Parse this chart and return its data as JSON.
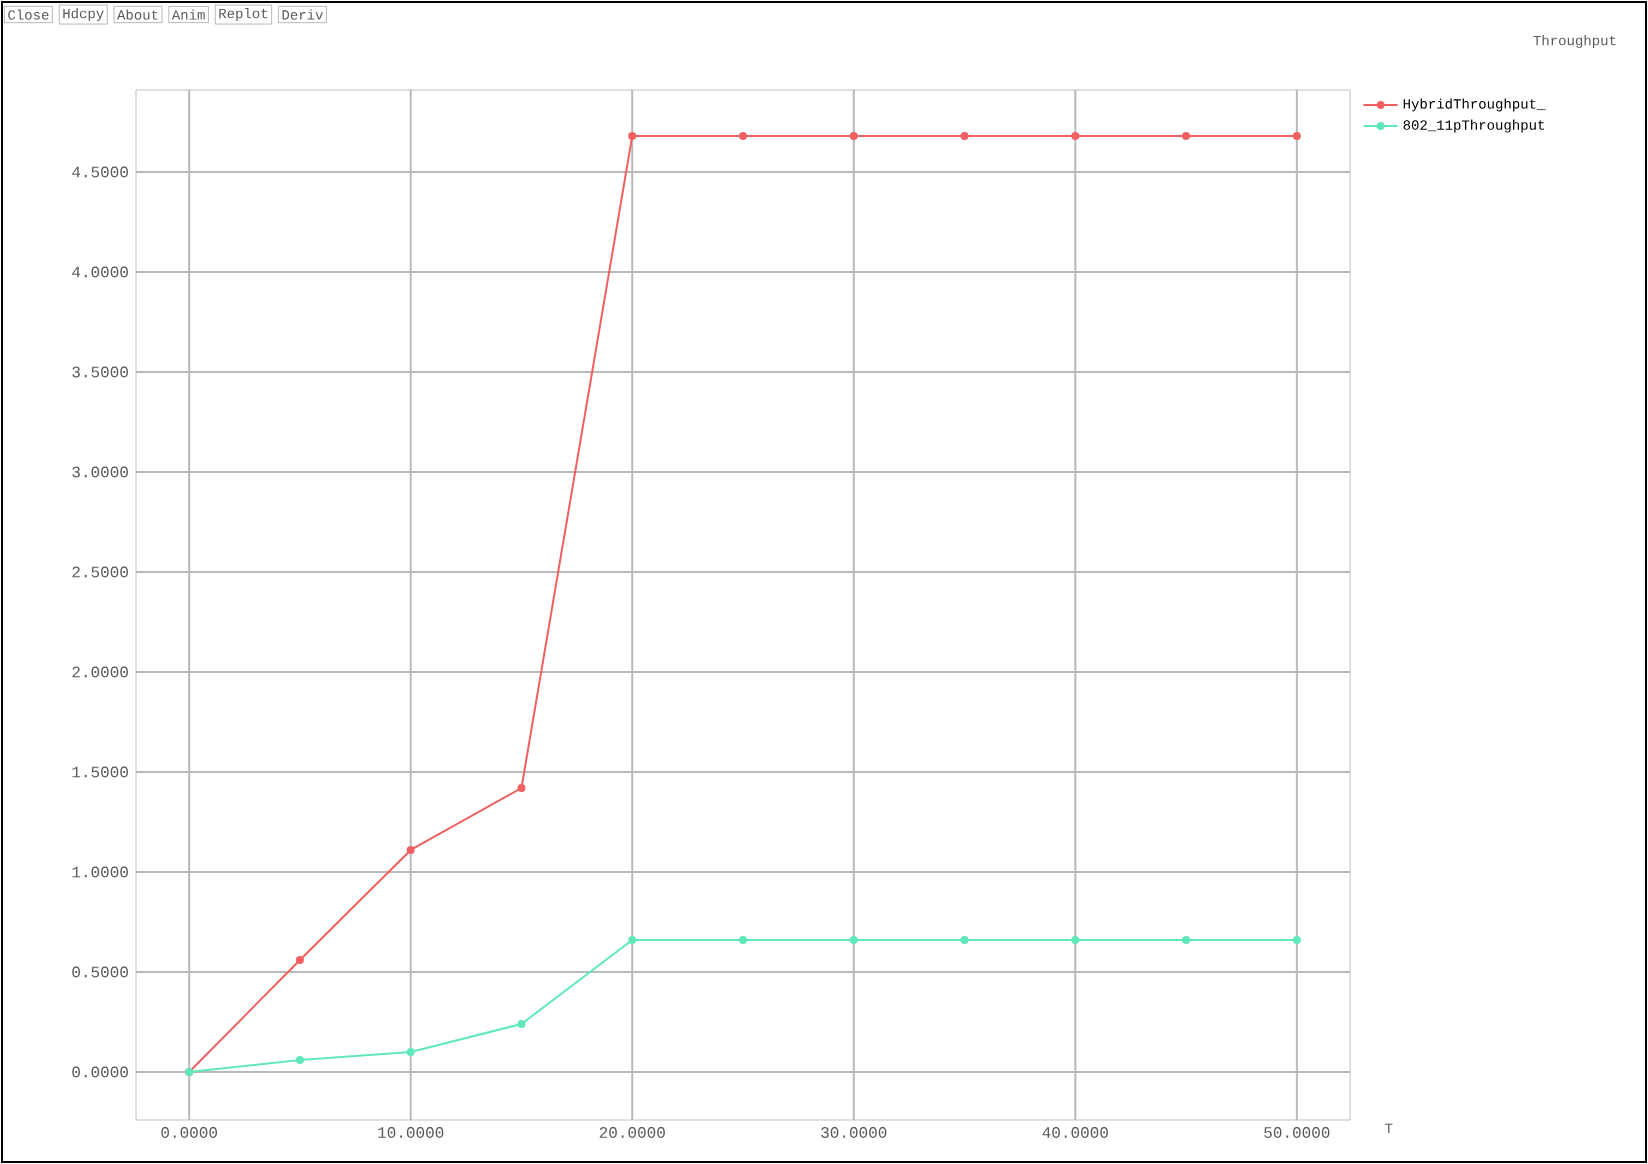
{
  "chart_data": {
    "type": "line",
    "title": "Throughput",
    "xlabel": "T",
    "annotations": [
      "Close",
      "Hdcpy",
      "About",
      "Anim",
      "Replot",
      "Deriv"
    ],
    "x": [
      0,
      5,
      10,
      15,
      20,
      25,
      30,
      35,
      40,
      45,
      50
    ],
    "series": [
      {
        "name": "HybridThroughput_",
        "color": "#f06060",
        "values": [
          0,
          0.56,
          1.11,
          1.42,
          4.68,
          4.68,
          4.68,
          4.68,
          4.68,
          4.68,
          4.68
        ]
      },
      {
        "name": "802_11pThroughput",
        "color": "#60e8b8",
        "values": [
          0,
          0.06,
          0.1,
          0.24,
          0.66,
          0.66,
          0.66,
          0.66,
          0.66,
          0.66,
          0.66
        ]
      }
    ],
    "xlim": [
      -2.4,
      52.4
    ],
    "ylim": [
      -0.24,
      4.91
    ],
    "xticks": [
      {
        "value": 0,
        "label": "0.0000"
      },
      {
        "value": 10,
        "label": "10.0000"
      },
      {
        "value": 20,
        "label": "20.0000"
      },
      {
        "value": 30,
        "label": "30.0000"
      },
      {
        "value": 40,
        "label": "40.0000"
      },
      {
        "value": 50,
        "label": "50.0000"
      }
    ],
    "yticks": [
      {
        "value": 0,
        "label": "0.0000"
      },
      {
        "value": 0.5,
        "label": "0.5000"
      },
      {
        "value": 1,
        "label": "1.0000"
      },
      {
        "value": 1.5,
        "label": "1.5000"
      },
      {
        "value": 2,
        "label": "2.0000"
      },
      {
        "value": 2.5,
        "label": "2.5000"
      },
      {
        "value": 3,
        "label": "3.0000"
      },
      {
        "value": 3.5,
        "label": "3.5000"
      },
      {
        "value": 4,
        "label": "4.0000"
      },
      {
        "value": 4.5,
        "label": "4.5000"
      }
    ],
    "grid": true,
    "legend": "top right",
    "marker": "circle",
    "line_style": "solid"
  }
}
